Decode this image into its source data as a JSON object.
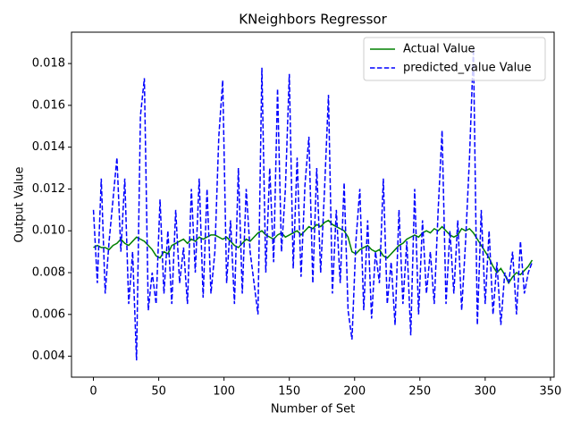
{
  "chart_data": {
    "type": "line",
    "title": "KNeighbors Regressor",
    "xlabel": "Number of Set",
    "ylabel": "Output Value",
    "x": [
      0,
      3,
      6,
      9,
      12,
      15,
      18,
      21,
      24,
      27,
      30,
      33,
      36,
      39,
      42,
      45,
      48,
      51,
      54,
      57,
      60,
      63,
      66,
      69,
      72,
      75,
      78,
      81,
      84,
      87,
      90,
      93,
      96,
      99,
      102,
      105,
      108,
      111,
      114,
      117,
      120,
      123,
      126,
      129,
      132,
      135,
      138,
      141,
      144,
      147,
      150,
      153,
      156,
      159,
      162,
      165,
      168,
      171,
      174,
      177,
      180,
      183,
      186,
      189,
      192,
      195,
      198,
      201,
      204,
      207,
      210,
      213,
      216,
      219,
      222,
      225,
      228,
      231,
      234,
      237,
      240,
      243,
      246,
      249,
      252,
      255,
      258,
      261,
      264,
      267,
      270,
      273,
      276,
      279,
      282,
      285,
      288,
      291,
      294,
      297,
      300,
      303,
      306,
      309,
      312,
      315,
      318,
      321,
      324,
      327,
      330,
      333,
      336
    ],
    "series": [
      {
        "name": "Actual Value",
        "color": "#008000",
        "dash": "solid",
        "values": [
          0.0092,
          0.0093,
          0.0092,
          0.0092,
          0.0091,
          0.0093,
          0.0094,
          0.0096,
          0.0094,
          0.0093,
          0.0095,
          0.0097,
          0.0096,
          0.0095,
          0.0093,
          0.0091,
          0.0088,
          0.0087,
          0.009,
          0.0089,
          0.0093,
          0.0094,
          0.0095,
          0.0096,
          0.0094,
          0.0096,
          0.0095,
          0.0097,
          0.0096,
          0.0097,
          0.0098,
          0.0098,
          0.0097,
          0.0096,
          0.0097,
          0.0095,
          0.0093,
          0.0092,
          0.0094,
          0.0096,
          0.0095,
          0.0097,
          0.0099,
          0.01,
          0.0098,
          0.0097,
          0.0096,
          0.0098,
          0.0099,
          0.0097,
          0.0098,
          0.0099,
          0.01,
          0.0098,
          0.01,
          0.0102,
          0.0101,
          0.0103,
          0.0102,
          0.0104,
          0.0105,
          0.0103,
          0.0102,
          0.0101,
          0.01,
          0.0097,
          0.009,
          0.0089,
          0.0091,
          0.0092,
          0.0093,
          0.0091,
          0.009,
          0.0091,
          0.0088,
          0.0087,
          0.0089,
          0.0091,
          0.0093,
          0.0094,
          0.0096,
          0.0097,
          0.0098,
          0.0097,
          0.0099,
          0.01,
          0.0099,
          0.0101,
          0.01,
          0.0102,
          0.01,
          0.0098,
          0.0097,
          0.0098,
          0.0101,
          0.01,
          0.0101,
          0.0099,
          0.0096,
          0.0093,
          0.009,
          0.0087,
          0.0083,
          0.008,
          0.0082,
          0.0079,
          0.0075,
          0.0078,
          0.008,
          0.0079,
          0.0081,
          0.0083,
          0.0086
        ]
      },
      {
        "name": "predicted_value Value",
        "color": "#0000ff",
        "dash": "dashed",
        "values": [
          0.011,
          0.0075,
          0.0125,
          0.007,
          0.0095,
          0.0115,
          0.0135,
          0.009,
          0.0125,
          0.0065,
          0.009,
          0.0038,
          0.0155,
          0.0173,
          0.0062,
          0.008,
          0.0065,
          0.0115,
          0.007,
          0.01,
          0.0065,
          0.011,
          0.0075,
          0.0092,
          0.0065,
          0.012,
          0.008,
          0.0125,
          0.0068,
          0.012,
          0.007,
          0.009,
          0.0145,
          0.0172,
          0.0075,
          0.0105,
          0.0065,
          0.013,
          0.007,
          0.012,
          0.009,
          0.0075,
          0.006,
          0.0178,
          0.008,
          0.013,
          0.0085,
          0.0168,
          0.009,
          0.012,
          0.0175,
          0.0082,
          0.0135,
          0.0078,
          0.0122,
          0.0145,
          0.0075,
          0.013,
          0.008,
          0.012,
          0.0165,
          0.007,
          0.011,
          0.0075,
          0.0123,
          0.0062,
          0.0048,
          0.0095,
          0.012,
          0.0062,
          0.0105,
          0.0058,
          0.009,
          0.0075,
          0.0125,
          0.0065,
          0.0085,
          0.0055,
          0.011,
          0.0065,
          0.0095,
          0.005,
          0.012,
          0.006,
          0.0105,
          0.007,
          0.009,
          0.0065,
          0.011,
          0.0148,
          0.0065,
          0.01,
          0.007,
          0.0105,
          0.0062,
          0.0095,
          0.0135,
          0.0187,
          0.0055,
          0.011,
          0.0065,
          0.01,
          0.006,
          0.0085,
          0.0055,
          0.008,
          0.0075,
          0.009,
          0.006,
          0.0095,
          0.007,
          0.008,
          0.0085
        ]
      }
    ],
    "xlim": [
      -16.8,
      352.8
    ],
    "xticks": [
      0,
      50,
      100,
      150,
      200,
      250,
      300,
      350
    ],
    "ylim": [
      0.003,
      0.0195
    ],
    "yticks": [
      0.004,
      0.006,
      0.008,
      {
        "value": 0.01,
        "label": "0.010"
      },
      0.012,
      0.014,
      0.016,
      0.018
    ],
    "legend": "upper right"
  }
}
